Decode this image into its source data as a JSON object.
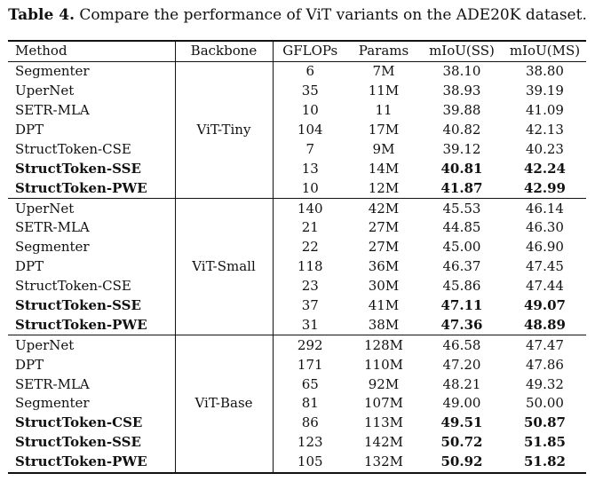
{
  "caption": {
    "label": "Table 4.",
    "text": "Compare the performance of ViT variants on the ADE20K dataset."
  },
  "table": {
    "headers": [
      "Method",
      "Backbone",
      "GFLOPs",
      "Params",
      "mIoU(SS)",
      "mIoU(MS)"
    ],
    "groups": [
      {
        "backbone": "ViT-Tiny",
        "rows": [
          {
            "method": "Segmenter",
            "gflops": "6",
            "params": "7M",
            "ss": "38.10",
            "ms": "38.80",
            "bold_method": false,
            "bold_ss": false,
            "bold_ms": false
          },
          {
            "method": "UperNet",
            "gflops": "35",
            "params": "11M",
            "ss": "38.93",
            "ms": "39.19",
            "bold_method": false,
            "bold_ss": false,
            "bold_ms": false
          },
          {
            "method": "SETR-MLA",
            "gflops": "10",
            "params": "11",
            "ss": "39.88",
            "ms": "41.09",
            "bold_method": false,
            "bold_ss": false,
            "bold_ms": false
          },
          {
            "method": "DPT",
            "gflops": "104",
            "params": "17M",
            "ss": "40.82",
            "ms": "42.13",
            "bold_method": false,
            "bold_ss": false,
            "bold_ms": false
          },
          {
            "method": "StructToken-CSE",
            "gflops": "7",
            "params": "9M",
            "ss": "39.12",
            "ms": "40.23",
            "bold_method": false,
            "bold_ss": false,
            "bold_ms": false
          },
          {
            "method": "StructToken-SSE",
            "gflops": "13",
            "params": "14M",
            "ss": "40.81",
            "ms": "42.24",
            "bold_method": true,
            "bold_ss": true,
            "bold_ms": true
          },
          {
            "method": "StructToken-PWE",
            "gflops": "10",
            "params": "12M",
            "ss": "41.87",
            "ms": "42.99",
            "bold_method": true,
            "bold_ss": true,
            "bold_ms": true
          }
        ]
      },
      {
        "backbone": "ViT-Small",
        "rows": [
          {
            "method": "UperNet",
            "gflops": "140",
            "params": "42M",
            "ss": "45.53",
            "ms": "46.14",
            "bold_method": false,
            "bold_ss": false,
            "bold_ms": false
          },
          {
            "method": "SETR-MLA",
            "gflops": "21",
            "params": "27M",
            "ss": "44.85",
            "ms": "46.30",
            "bold_method": false,
            "bold_ss": false,
            "bold_ms": false
          },
          {
            "method": "Segmenter",
            "gflops": "22",
            "params": "27M",
            "ss": "45.00",
            "ms": "46.90",
            "bold_method": false,
            "bold_ss": false,
            "bold_ms": false
          },
          {
            "method": "DPT",
            "gflops": "118",
            "params": "36M",
            "ss": "46.37",
            "ms": "47.45",
            "bold_method": false,
            "bold_ss": false,
            "bold_ms": false
          },
          {
            "method": "StructToken-CSE",
            "gflops": "23",
            "params": "30M",
            "ss": "45.86",
            "ms": "47.44",
            "bold_method": false,
            "bold_ss": false,
            "bold_ms": false
          },
          {
            "method": "StructToken-SSE",
            "gflops": "37",
            "params": "41M",
            "ss": "47.11",
            "ms": "49.07",
            "bold_method": true,
            "bold_ss": true,
            "bold_ms": true
          },
          {
            "method": "StructToken-PWE",
            "gflops": "31",
            "params": "38M",
            "ss": "47.36",
            "ms": "48.89",
            "bold_method": true,
            "bold_ss": true,
            "bold_ms": true
          }
        ]
      },
      {
        "backbone": "ViT-Base",
        "rows": [
          {
            "method": "UperNet",
            "gflops": "292",
            "params": "128M",
            "ss": "46.58",
            "ms": "47.47",
            "bold_method": false,
            "bold_ss": false,
            "bold_ms": false
          },
          {
            "method": "DPT",
            "gflops": "171",
            "params": "110M",
            "ss": "47.20",
            "ms": "47.86",
            "bold_method": false,
            "bold_ss": false,
            "bold_ms": false
          },
          {
            "method": "SETR-MLA",
            "gflops": "65",
            "params": "92M",
            "ss": "48.21",
            "ms": "49.32",
            "bold_method": false,
            "bold_ss": false,
            "bold_ms": false
          },
          {
            "method": "Segmenter",
            "gflops": "81",
            "params": "107M",
            "ss": "49.00",
            "ms": "50.00",
            "bold_method": false,
            "bold_ss": false,
            "bold_ms": false
          },
          {
            "method": "StructToken-CSE",
            "gflops": "86",
            "params": "113M",
            "ss": "49.51",
            "ms": "50.87",
            "bold_method": true,
            "bold_ss": true,
            "bold_ms": true
          },
          {
            "method": "StructToken-SSE",
            "gflops": "123",
            "params": "142M",
            "ss": "50.72",
            "ms": "51.85",
            "bold_method": true,
            "bold_ss": true,
            "bold_ms": true
          },
          {
            "method": "StructToken-PWE",
            "gflops": "105",
            "params": "132M",
            "ss": "50.92",
            "ms": "51.82",
            "bold_method": true,
            "bold_ss": true,
            "bold_ms": true
          }
        ]
      }
    ]
  }
}
